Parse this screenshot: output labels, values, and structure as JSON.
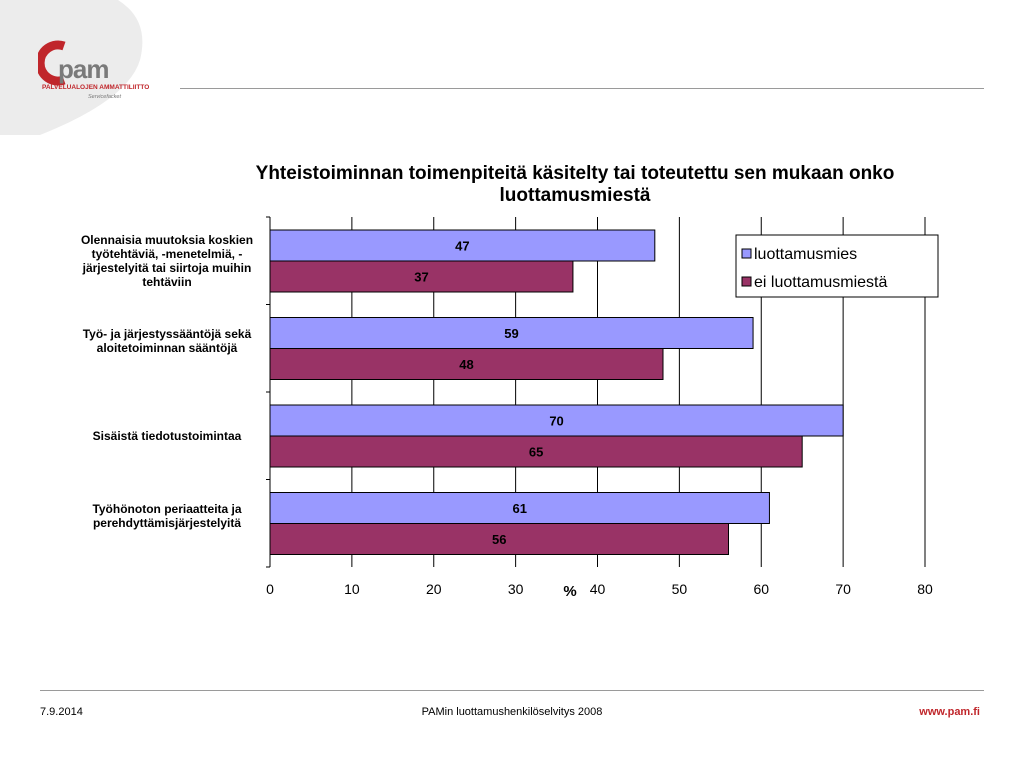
{
  "brand": {
    "logo_word": "pam",
    "logo_subtitle": "PALVELUALOJEN AMMATTILIITTO",
    "logo_tagline": "Servicefacket",
    "accent_color": "#c0262b"
  },
  "footer": {
    "date": "7.9.2014",
    "center_text": "PAMin luottamushenkilöselvitys 2008",
    "url": "www.pam.fi"
  },
  "chart_data": {
    "type": "bar",
    "orientation": "horizontal",
    "title": "Yhteistoiminnan toimenpiteitä käsitelty tai toteutettu  sen mukaan onko luottamusmiestä",
    "xlabel": "%",
    "ylabel": "",
    "xlim": [
      0,
      80
    ],
    "x_ticks": [
      "0",
      "10",
      "20",
      "30",
      "40",
      "50",
      "60",
      "70",
      "80"
    ],
    "grid": "vertical",
    "legend_position": "top-right",
    "categories": [
      "Olennaisia muutoksia koskien työtehtäviä, -menetelmiä, -järjestelyitä tai siirtoja muihin tehtäviin",
      "Työ- ja järjestyssääntöjä sekä aloitetoiminnan sääntöjä",
      "Sisäistä tiedotustoimintaa",
      "Työhönoton periaatteita ja perehdyttämisjärjestelyitä"
    ],
    "series": [
      {
        "name": "luottamusmies",
        "color": "#9999ff",
        "values": [
          47,
          59,
          70,
          61
        ]
      },
      {
        "name": "ei luottamusmiestä",
        "color": "#993366",
        "values": [
          37,
          48,
          65,
          56
        ]
      }
    ]
  }
}
